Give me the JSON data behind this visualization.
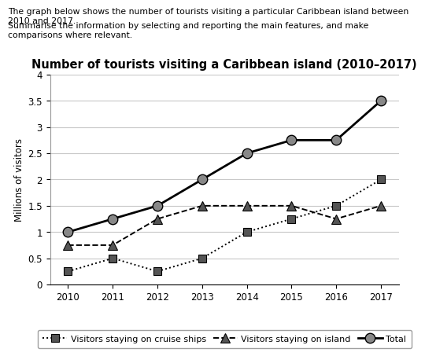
{
  "title": "Number of tourists visiting a Caribbean island (2010–2017)",
  "header_line1": "The graph below shows the number of tourists visiting a particular Caribbean island between 2010 and 2017.",
  "header_line2": "Summarise the information by selecting and reporting the main features, and make comparisons where relevant.",
  "ylabel": "Millions of visitors",
  "years": [
    2010,
    2011,
    2012,
    2013,
    2014,
    2015,
    2016,
    2017
  ],
  "cruise_ships": [
    0.25,
    0.5,
    0.25,
    0.5,
    1.0,
    1.25,
    1.5,
    2.0
  ],
  "on_island": [
    0.75,
    0.75,
    1.25,
    1.5,
    1.5,
    1.5,
    1.25,
    1.5
  ],
  "total": [
    1.0,
    1.25,
    1.5,
    2.0,
    2.5,
    2.75,
    2.75,
    3.5
  ],
  "ylim": [
    0,
    4
  ],
  "yticks": [
    0,
    0.5,
    1.0,
    1.5,
    2.0,
    2.5,
    3.0,
    3.5,
    4.0
  ],
  "background_color": "#ffffff",
  "grid_color": "#c8c8c8",
  "line_color": "#000000",
  "marker_gray": "#888888",
  "marker_dark": "#555555",
  "legend_label_cruise": "Visitors staying on cruise ships",
  "legend_label_island": "Visitors staying on island",
  "legend_label_total": "Total",
  "title_fontsize": 10.5,
  "header_fontsize": 7.8,
  "label_fontsize": 8.5,
  "tick_fontsize": 8.5,
  "legend_fontsize": 8
}
